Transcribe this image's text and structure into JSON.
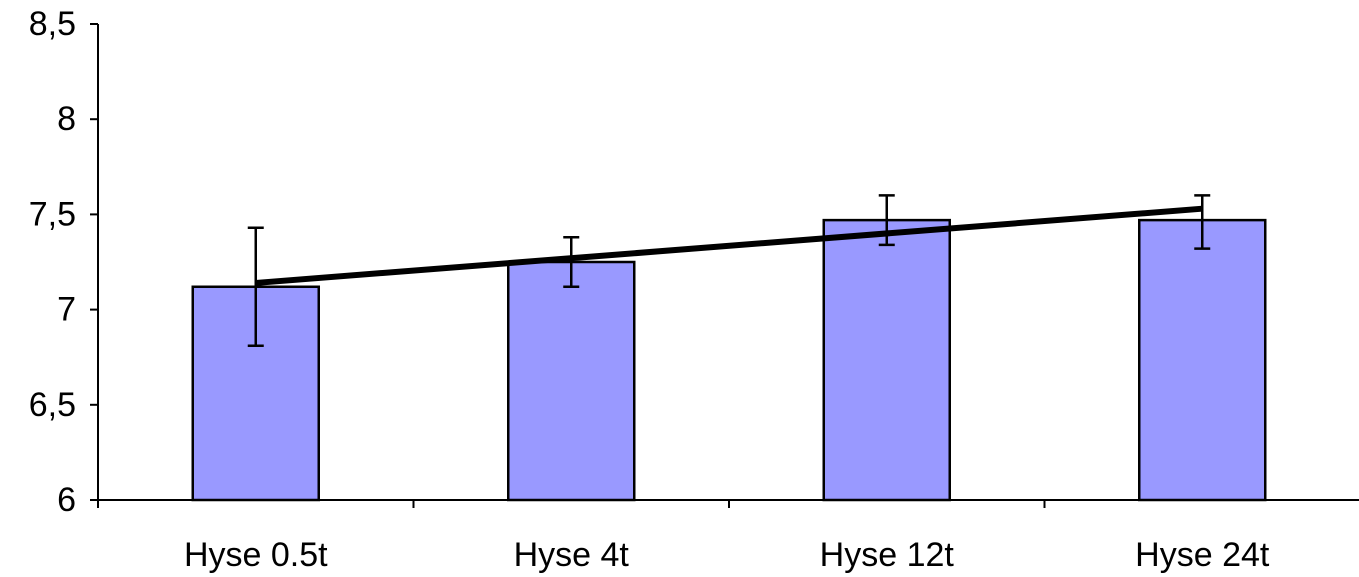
{
  "chart_data": {
    "type": "bar",
    "title": "",
    "xlabel": "",
    "ylabel": "",
    "categories": [
      "Hyse 0.5t",
      "Hyse 4t",
      "Hyse 12t",
      "Hyse 24t"
    ],
    "values": [
      7.12,
      7.25,
      7.47,
      7.47
    ],
    "error_bars": {
      "lower": [
        6.81,
        7.12,
        7.34,
        7.32
      ],
      "upper": [
        7.43,
        7.38,
        7.6,
        7.6
      ]
    },
    "trendline": {
      "type": "linear",
      "start": 7.14,
      "end": 7.53
    },
    "ylim": [
      6,
      8.5
    ],
    "yticks": [
      6,
      6.5,
      7,
      7.5,
      8,
      8.5
    ],
    "ytick_labels": [
      "6",
      "6,5",
      "7",
      "7,5",
      "8",
      "8,5"
    ],
    "grid": false,
    "legend": "none",
    "colors": {
      "bar_fill": "#9999ff",
      "bar_stroke": "#000000",
      "trendline": "#000000",
      "axis": "#000000"
    }
  }
}
